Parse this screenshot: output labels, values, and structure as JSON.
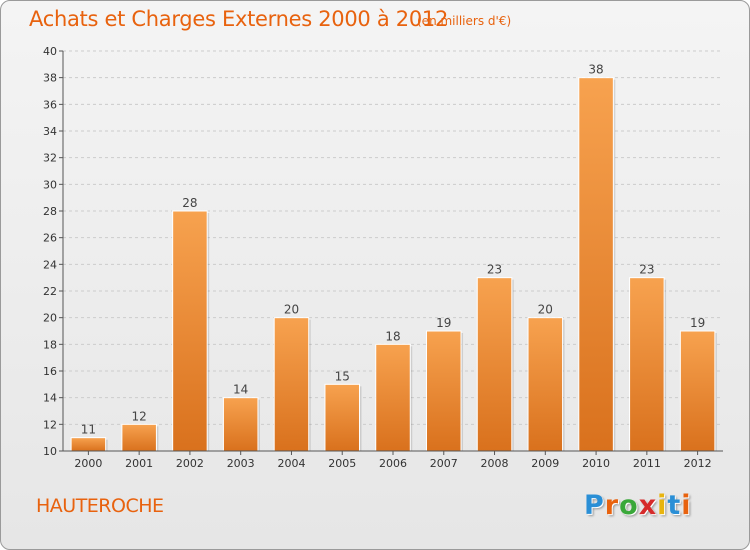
{
  "header": {
    "title": "Achats et Charges Externes 2000 à 2012",
    "subtitle": "(en milliers d'€)"
  },
  "footer": {
    "place": "HAUTEROCHE",
    "logo": {
      "letters": [
        "P",
        "r",
        "o",
        "x",
        "i",
        "t",
        "i"
      ],
      "colors": [
        "#2a8fd6",
        "#e8620e",
        "#3aa83a",
        "#d62a2a",
        "#e8b40e",
        "#2a8fd6",
        "#e8620e"
      ]
    }
  },
  "chart_data": {
    "type": "bar",
    "categories": [
      "2000",
      "2001",
      "2002",
      "2003",
      "2004",
      "2005",
      "2006",
      "2007",
      "2008",
      "2009",
      "2010",
      "2011",
      "2012"
    ],
    "values": [
      11,
      12,
      28,
      14,
      20,
      15,
      18,
      19,
      23,
      20,
      38,
      23,
      19
    ],
    "value_labels": [
      "11",
      "12",
      "28",
      "14",
      "20",
      "15",
      "18",
      "19",
      "23",
      "20",
      "38",
      "23",
      "19"
    ],
    "title": "Achats et Charges Externes 2000 à 2012",
    "xlabel": "",
    "ylabel": "",
    "ylim": [
      10,
      40
    ],
    "yticks": [
      "10",
      "12",
      "14",
      "16",
      "18",
      "20",
      "22",
      "24",
      "26",
      "28",
      "30",
      "32",
      "34",
      "36",
      "38",
      "40"
    ],
    "grid": true,
    "legend": "none",
    "colors": {
      "bar_light": "#f7a24f",
      "bar_dark": "#d9711d",
      "grid": "#cccccc",
      "axis": "#555555"
    }
  }
}
